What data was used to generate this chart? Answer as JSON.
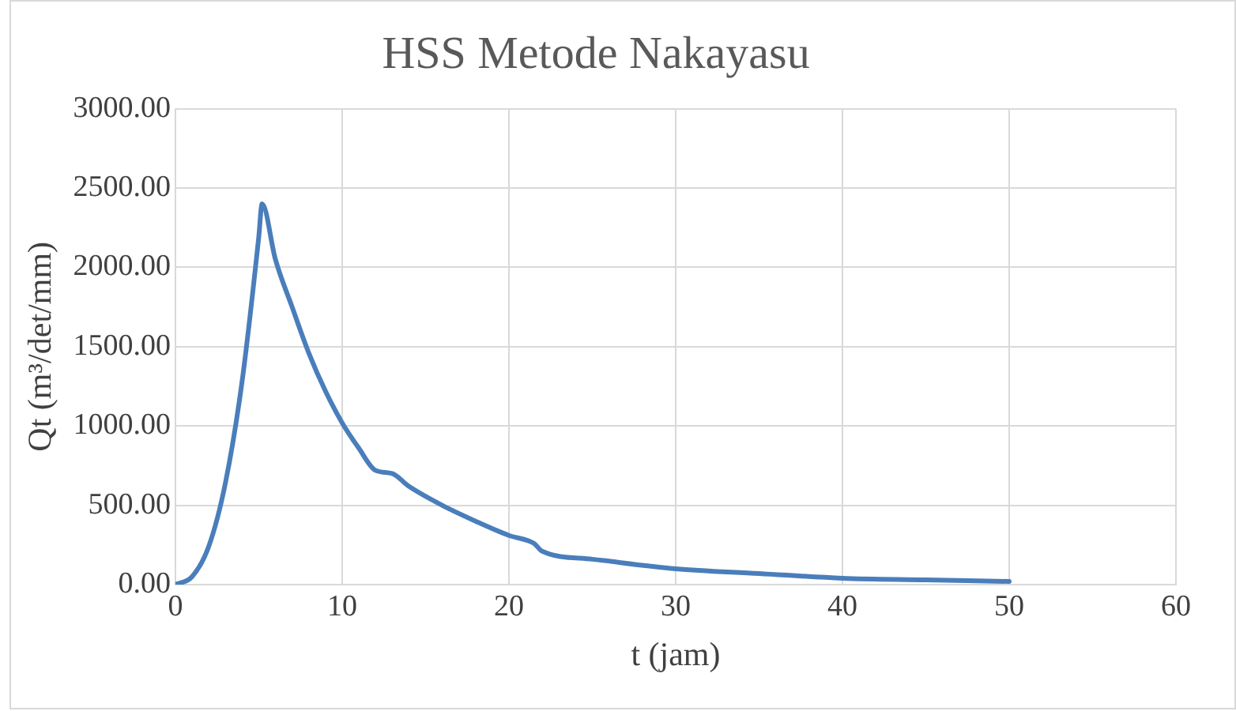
{
  "chart_data": {
    "type": "line",
    "title": "HSS Metode Nakayasu",
    "xlabel": "t (jam)",
    "ylabel": "Qt (m³/det/mm)",
    "x": [
      0,
      1,
      2,
      3,
      4,
      5,
      5.2,
      6,
      7,
      8,
      9,
      10,
      11,
      12,
      13,
      14,
      16,
      18,
      20,
      21.5,
      22,
      25,
      30,
      35,
      40,
      45,
      50
    ],
    "series": [
      {
        "color": "#4a7ebb",
        "values": [
          0,
          50,
          240,
          640,
          1280,
          2190,
          2400,
          2050,
          1750,
          1460,
          1220,
          1020,
          860,
          720,
          700,
          620,
          500,
          400,
          310,
          260,
          210,
          160,
          100,
          70,
          40,
          30,
          20
        ]
      }
    ],
    "xlim": [
      0,
      60
    ],
    "xticks": [
      0,
      10,
      20,
      30,
      40,
      50,
      60
    ],
    "ylim": [
      0,
      3000
    ],
    "yticks": [
      {
        "value": 0,
        "label": "0.00"
      },
      {
        "value": 500,
        "label": "500.00"
      },
      {
        "value": 1000,
        "label": "1000.00"
      },
      {
        "value": 1500,
        "label": "1500.00"
      },
      {
        "value": 2000,
        "label": "2000.00"
      },
      {
        "value": 2500,
        "label": "2500.00"
      },
      {
        "value": 3000,
        "label": "3000.00"
      }
    ],
    "grid": true,
    "legend": false,
    "marker": "none",
    "line_style": "solid"
  }
}
